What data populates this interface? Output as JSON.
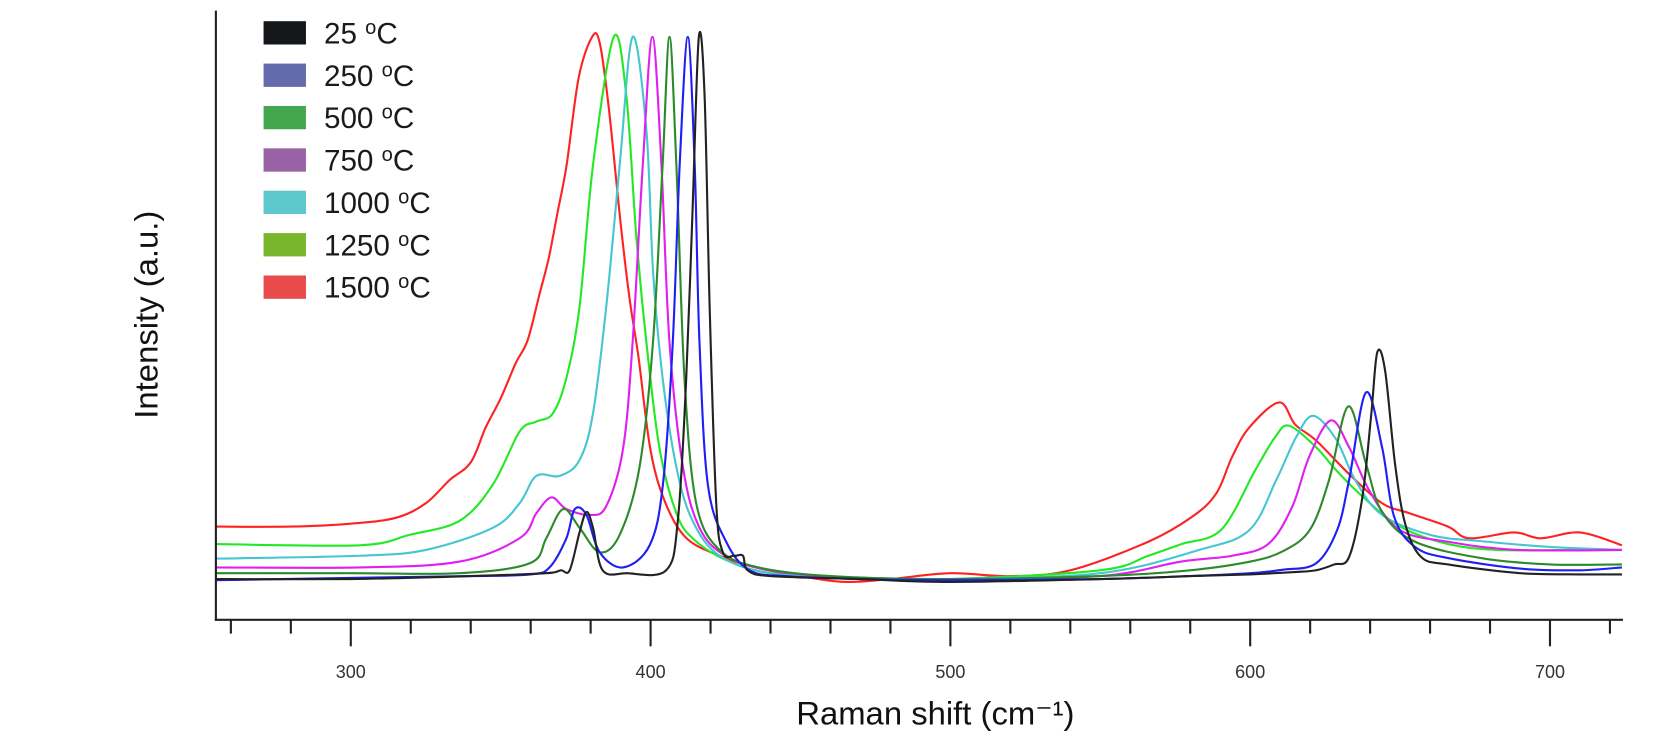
{
  "chart_data": {
    "type": "line",
    "title": "",
    "xlabel": "Raman shift (cm⁻¹)",
    "ylabel": "Intensity (a.u.)",
    "xlim": [
      255,
      724
    ],
    "ylim": [
      0,
      1.045
    ],
    "x_ticks": [
      300,
      400,
      500,
      600,
      700
    ],
    "x_tick_labels": [
      "300",
      "400",
      "500",
      "600",
      "700"
    ],
    "x_minor_tick_step": 20,
    "y_ticks_shown": false,
    "grid": false,
    "legend_position": "top-left",
    "series": [
      {
        "name": "25 °C",
        "label_num": "25",
        "label_unit_o": "o",
        "label_unit_c": "C",
        "swatch_color": "#15181b",
        "line_color": "#222222",
        "x": [
          255,
          300,
          340,
          365,
          370,
          373,
          376.3,
          378.6,
          380.8,
          384,
          392,
          405.2,
          409.1,
          411.9,
          414.1,
          416.1,
          418,
          419.7,
          421.9,
          424.1,
          428,
          430.8,
          432.4,
          440,
          470,
          500,
          550,
          580,
          600,
          615,
          622,
          628,
          633,
          637.4,
          640.4,
          642.4,
          645,
          648.3,
          651.7,
          657,
          666,
          690,
          710,
          724
        ],
        "y": [
          0.07,
          0.07,
          0.075,
          0.08,
          0.085,
          0.085,
          0.15,
          0.185,
          0.158,
          0.085,
          0.08,
          0.085,
          0.171,
          0.415,
          0.72,
          1.0,
          0.9,
          0.537,
          0.2,
          0.116,
          0.11,
          0.11,
          0.085,
          0.075,
          0.07,
          0.065,
          0.07,
          0.075,
          0.078,
          0.082,
          0.085,
          0.095,
          0.108,
          0.21,
          0.354,
          0.459,
          0.427,
          0.268,
          0.165,
          0.108,
          0.095,
          0.08,
          0.078,
          0.078
        ]
      },
      {
        "name": "250 °C",
        "label_num": "250",
        "label_unit_o": "o",
        "label_unit_c": "C",
        "swatch_color": "#636bad",
        "line_color": "#1f1ff5",
        "x": [
          255,
          300,
          340,
          360,
          366.3,
          371.9,
          374.7,
          378.6,
          383,
          390.8,
          399.7,
          404.1,
          407.4,
          409.7,
          412.4,
          414.7,
          416.3,
          419.1,
          425.2,
          433,
          445,
          470,
          500,
          550,
          580,
          600,
          611,
          622,
          629,
          633,
          638.6,
          644,
          648,
          655,
          666,
          690,
          710,
          724
        ],
        "y": [
          0.068,
          0.072,
          0.075,
          0.078,
          0.09,
          0.14,
          0.19,
          0.18,
          0.116,
          0.09,
          0.128,
          0.232,
          0.476,
          0.78,
          1.0,
          0.78,
          0.476,
          0.232,
          0.134,
          0.085,
          0.075,
          0.07,
          0.068,
          0.07,
          0.075,
          0.08,
          0.086,
          0.097,
          0.154,
          0.24,
          0.39,
          0.296,
          0.177,
          0.125,
          0.106,
          0.088,
          0.085,
          0.09
        ]
      },
      {
        "name": "500 °C",
        "label_num": "500",
        "label_unit_o": "o",
        "label_unit_c": "C",
        "swatch_color": "#45a650",
        "line_color": "#2c8a2c",
        "x": [
          255,
          300,
          336.3,
          359.7,
          365.2,
          370.8,
          376.3,
          383,
          389.7,
          396.3,
          400.8,
          404,
          406.3,
          408.6,
          411.3,
          415.2,
          423,
          436,
          460,
          500,
          550,
          580,
          600,
          611,
          620,
          626.3,
          632.7,
          638.6,
          644,
          655,
          677,
          700,
          724
        ],
        "y": [
          0.08,
          0.08,
          0.08,
          0.097,
          0.14,
          0.19,
          0.158,
          0.116,
          0.146,
          0.262,
          0.476,
          0.78,
          1.0,
          0.78,
          0.415,
          0.2,
          0.12,
          0.09,
          0.075,
          0.07,
          0.075,
          0.085,
          0.1,
          0.118,
          0.155,
          0.24,
          0.366,
          0.268,
          0.185,
          0.134,
          0.106,
          0.095,
          0.095
        ]
      },
      {
        "name": "750 °C",
        "label_num": "750",
        "label_unit_o": "o",
        "label_unit_c": "C",
        "swatch_color": "#9a62a4",
        "line_color": "#e020f0",
        "x": [
          255,
          303,
          336.3,
          356.3,
          361.9,
          366.9,
          371.9,
          379.7,
          385.2,
          390.8,
          394,
          397.4,
          400.6,
          403.6,
          406.3,
          410.8,
          416.3,
          425,
          440,
          470,
          500,
          550,
          577,
          594,
          606,
          614,
          619.7,
          626.9,
          633,
          639.7,
          649.6,
          666,
          689,
          724
        ],
        "y": [
          0.09,
          0.09,
          0.1,
          0.14,
          0.183,
          0.21,
          0.19,
          0.18,
          0.195,
          0.293,
          0.476,
          0.78,
          1.0,
          0.78,
          0.476,
          0.262,
          0.158,
          0.11,
          0.085,
          0.07,
          0.07,
          0.075,
          0.1,
          0.11,
          0.13,
          0.194,
          0.28,
          0.342,
          0.296,
          0.222,
          0.155,
          0.134,
          0.12,
          0.12
        ]
      },
      {
        "name": "1000 °C",
        "label_num": "1000",
        "label_unit_o": "o",
        "label_unit_c": "C",
        "swatch_color": "#5ec7cb",
        "line_color": "#45c6d0",
        "x": [
          255,
          303,
          325,
          347.4,
          356.3,
          361.9,
          369.7,
          376.3,
          380.8,
          385.2,
          389.7,
          394,
          398.6,
          400.8,
          404,
          408.6,
          414,
          423,
          440,
          470,
          500,
          550,
          583,
          599.7,
          608.7,
          615.3,
          621,
          628.6,
          635,
          644,
          660.6,
          677,
          700,
          724
        ],
        "y": [
          0.105,
          0.11,
          0.12,
          0.158,
          0.2,
          0.247,
          0.247,
          0.274,
          0.354,
          0.537,
          0.78,
          1.0,
          0.84,
          0.6,
          0.415,
          0.262,
          0.17,
          0.11,
          0.08,
          0.07,
          0.07,
          0.08,
          0.12,
          0.154,
          0.24,
          0.313,
          0.35,
          0.31,
          0.24,
          0.18,
          0.145,
          0.135,
          0.125,
          0.12
        ]
      },
      {
        "name": "1250 °C",
        "label_num": "1250",
        "label_unit_o": "o",
        "label_unit_c": "C",
        "swatch_color": "#7ab62b",
        "line_color": "#25e825",
        "x": [
          255,
          303,
          319.7,
          336.3,
          347.4,
          356.3,
          361.9,
          367.4,
          371.9,
          376.3,
          380.8,
          387.7,
          391.9,
          395.2,
          398.6,
          403,
          408.6,
          414,
          425,
          440,
          470,
          500,
          550,
          566,
          577,
          590.4,
          601.7,
          608.4,
          613,
          622,
          628.6,
          637.6,
          650,
          666,
          683,
          711,
          724
        ],
        "y": [
          0.13,
          0.128,
          0.146,
          0.17,
          0.232,
          0.323,
          0.34,
          0.354,
          0.415,
          0.537,
          0.78,
          1.0,
          0.9,
          0.66,
          0.476,
          0.293,
          0.183,
          0.14,
          0.103,
          0.08,
          0.07,
          0.07,
          0.085,
          0.11,
          0.13,
          0.155,
          0.257,
          0.314,
          0.333,
          0.296,
          0.257,
          0.211,
          0.16,
          0.13,
          0.12,
          0.12,
          0.12
        ]
      },
      {
        "name": "1500 °C",
        "label_num": "1500",
        "label_unit_o": "o",
        "label_unit_c": "C",
        "swatch_color": "#e84b4b",
        "line_color": "#ff2222",
        "x": [
          255,
          280,
          300,
          315,
          325,
          333,
          340,
          345,
          350,
          355,
          359,
          363,
          366,
          369,
          372,
          376,
          380.5,
          383,
          386,
          390,
          393,
          396,
          400,
          405,
          412,
          423,
          435,
          450,
          465,
          480,
          500,
          520,
          540,
          566,
          580.7,
          588.7,
          594,
          599.7,
          609.7,
          615,
          621.9,
          633,
          644,
          653,
          666,
          673,
          688,
          697,
          710,
          724
        ],
        "y": [
          0.16,
          0.16,
          0.165,
          0.175,
          0.2,
          0.24,
          0.27,
          0.33,
          0.38,
          0.44,
          0.48,
          0.56,
          0.62,
          0.7,
          0.78,
          0.93,
          1.0,
          0.99,
          0.88,
          0.68,
          0.55,
          0.45,
          0.29,
          0.2,
          0.14,
          0.11,
          0.09,
          0.075,
          0.065,
          0.07,
          0.08,
          0.075,
          0.085,
          0.134,
          0.177,
          0.217,
          0.28,
          0.33,
          0.373,
          0.335,
          0.308,
          0.25,
          0.2,
          0.183,
          0.16,
          0.14,
          0.15,
          0.14,
          0.15,
          0.128
        ]
      }
    ]
  }
}
